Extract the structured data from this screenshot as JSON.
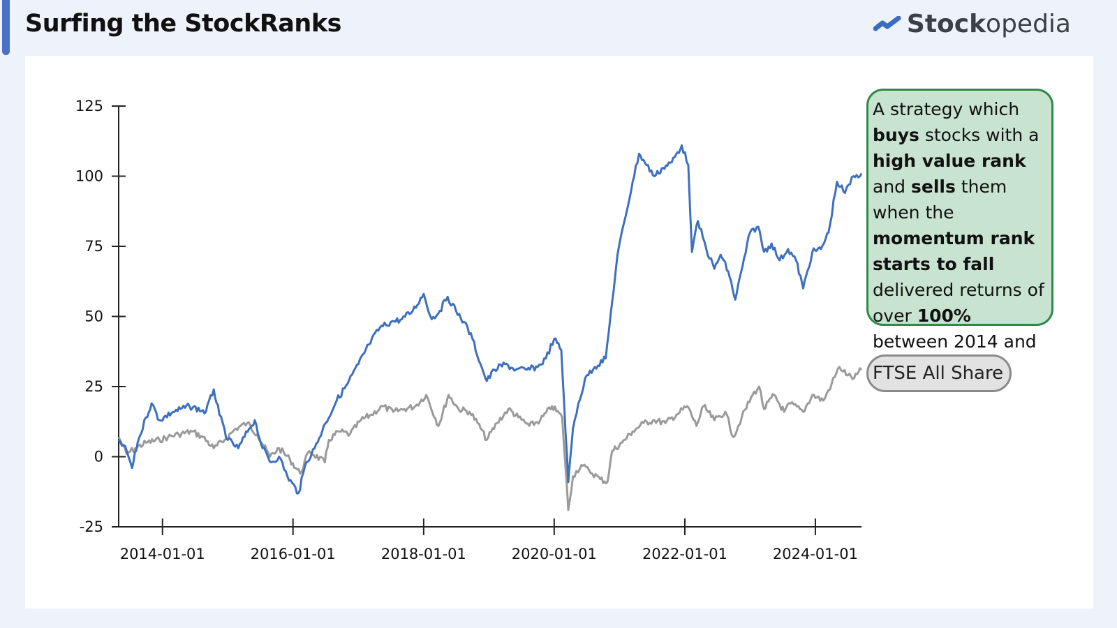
{
  "header": {
    "title": "Surfing the StockRanks",
    "brand_bold": "Stock",
    "brand_light": "opedia"
  },
  "annotation": {
    "segments": [
      {
        "text": "A strategy which ",
        "bold": false
      },
      {
        "text": "buys",
        "bold": true
      },
      {
        "text": " stocks with a ",
        "bold": false
      },
      {
        "text": "high value rank",
        "bold": true
      },
      {
        "text": " and ",
        "bold": false
      },
      {
        "text": "sells",
        "bold": true
      },
      {
        "text": " them when the ",
        "bold": false
      },
      {
        "text": "momentum rank starts to fall",
        "bold": true
      },
      {
        "text": " delivered returns of over ",
        "bold": false
      },
      {
        "text": "100%",
        "bold": true
      },
      {
        "text": " between 2014 and 2024",
        "bold": false
      }
    ]
  },
  "colors": {
    "strategy": "#3d6fbf",
    "benchmark": "#9a9a9a",
    "accent": "#4a72c4",
    "annotation_bg": "#c8e3d0",
    "annotation_border": "#2f8a4a"
  },
  "chart_data": {
    "type": "line",
    "title": "",
    "xlabel": "",
    "ylabel": "",
    "ylim": [
      -25,
      125
    ],
    "xlim": [
      "2013-05-01",
      "2024-09-15"
    ],
    "y_ticks": [
      "-25",
      "0",
      "25",
      "50",
      "75",
      "100",
      "125"
    ],
    "x_ticks": [
      "2014-01-01",
      "2016-01-01",
      "2018-01-01",
      "2020-01-01",
      "2022-01-01",
      "2024-01-01"
    ],
    "grid": false,
    "series": [
      {
        "name": "",
        "color": "#3d6fbf",
        "points": [
          [
            "2013-05-01",
            6
          ],
          [
            "2013-06-15",
            2
          ],
          [
            "2013-07-15",
            -4
          ],
          [
            "2013-08-15",
            5
          ],
          [
            "2013-10-01",
            14
          ],
          [
            "2013-11-01",
            19
          ],
          [
            "2013-12-15",
            13
          ],
          [
            "2014-03-01",
            16
          ],
          [
            "2014-06-01",
            18
          ],
          [
            "2014-09-01",
            16
          ],
          [
            "2014-10-15",
            24
          ],
          [
            "2014-11-15",
            15
          ],
          [
            "2015-01-01",
            6
          ],
          [
            "2015-03-01",
            3
          ],
          [
            "2015-05-01",
            10
          ],
          [
            "2015-06-01",
            13
          ],
          [
            "2015-07-15",
            3
          ],
          [
            "2015-09-01",
            -2
          ],
          [
            "2015-10-15",
            0
          ],
          [
            "2015-12-01",
            -7
          ],
          [
            "2016-02-01",
            -13
          ],
          [
            "2016-03-15",
            -2
          ],
          [
            "2016-05-01",
            3
          ],
          [
            "2016-07-01",
            12
          ],
          [
            "2016-09-01",
            20
          ],
          [
            "2016-11-01",
            26
          ],
          [
            "2017-01-01",
            33
          ],
          [
            "2017-03-01",
            40
          ],
          [
            "2017-05-01",
            46
          ],
          [
            "2017-07-01",
            48
          ],
          [
            "2017-09-01",
            49
          ],
          [
            "2017-11-01",
            52
          ],
          [
            "2018-01-01",
            58
          ],
          [
            "2018-02-15",
            49
          ],
          [
            "2018-04-01",
            52
          ],
          [
            "2018-05-15",
            57
          ],
          [
            "2018-07-01",
            52
          ],
          [
            "2018-08-15",
            48
          ],
          [
            "2018-10-01",
            42
          ],
          [
            "2018-11-15",
            33
          ],
          [
            "2018-12-20",
            27
          ],
          [
            "2019-02-01",
            31
          ],
          [
            "2019-04-01",
            33
          ],
          [
            "2019-06-01",
            31
          ],
          [
            "2019-08-01",
            31
          ],
          [
            "2019-10-01",
            32
          ],
          [
            "2019-11-15",
            35
          ],
          [
            "2020-01-01",
            42
          ],
          [
            "2020-02-10",
            38
          ],
          [
            "2020-03-20",
            -9
          ],
          [
            "2020-04-15",
            10
          ],
          [
            "2020-05-15",
            19
          ],
          [
            "2020-07-01",
            29
          ],
          [
            "2020-08-15",
            32
          ],
          [
            "2020-10-15",
            35
          ],
          [
            "2020-11-20",
            55
          ],
          [
            "2020-12-20",
            72
          ],
          [
            "2021-02-01",
            85
          ],
          [
            "2021-03-15",
            98
          ],
          [
            "2021-04-20",
            108
          ],
          [
            "2021-06-01",
            104
          ],
          [
            "2021-07-15",
            100
          ],
          [
            "2021-09-01",
            103
          ],
          [
            "2021-10-20",
            105
          ],
          [
            "2021-12-15",
            111
          ],
          [
            "2022-01-20",
            104
          ],
          [
            "2022-02-10",
            73
          ],
          [
            "2022-03-15",
            84
          ],
          [
            "2022-05-01",
            74
          ],
          [
            "2022-06-15",
            67
          ],
          [
            "2022-07-20",
            72
          ],
          [
            "2022-09-01",
            66
          ],
          [
            "2022-10-10",
            56
          ],
          [
            "2022-11-20",
            68
          ],
          [
            "2023-01-01",
            80
          ],
          [
            "2023-02-15",
            82
          ],
          [
            "2023-03-20",
            73
          ],
          [
            "2023-05-01",
            76
          ],
          [
            "2023-06-15",
            70
          ],
          [
            "2023-08-01",
            74
          ],
          [
            "2023-09-15",
            70
          ],
          [
            "2023-10-25",
            60
          ],
          [
            "2023-12-15",
            73
          ],
          [
            "2024-02-01",
            74
          ],
          [
            "2024-03-15",
            80
          ],
          [
            "2024-05-01",
            98
          ],
          [
            "2024-06-15",
            94
          ],
          [
            "2024-08-01",
            100
          ],
          [
            "2024-09-15",
            101
          ]
        ]
      },
      {
        "name": "FTSE All Share",
        "color": "#9a9a9a",
        "points": [
          [
            "2013-05-01",
            7
          ],
          [
            "2013-06-15",
            1
          ],
          [
            "2013-08-01",
            3
          ],
          [
            "2013-10-01",
            5
          ],
          [
            "2013-12-15",
            6
          ],
          [
            "2014-02-01",
            7
          ],
          [
            "2014-04-01",
            8
          ],
          [
            "2014-06-15",
            9
          ],
          [
            "2014-08-15",
            7
          ],
          [
            "2014-10-15",
            3
          ],
          [
            "2014-12-15",
            6
          ],
          [
            "2015-02-15",
            10
          ],
          [
            "2015-04-20",
            12
          ],
          [
            "2015-06-15",
            8
          ],
          [
            "2015-08-25",
            0
          ],
          [
            "2015-10-15",
            3
          ],
          [
            "2015-12-15",
            -1
          ],
          [
            "2016-02-10",
            -6
          ],
          [
            "2016-04-01",
            2
          ],
          [
            "2016-06-27",
            -2
          ],
          [
            "2016-07-20",
            6
          ],
          [
            "2016-09-15",
            9
          ],
          [
            "2016-11-15",
            8
          ],
          [
            "2017-01-15",
            13
          ],
          [
            "2017-03-15",
            15
          ],
          [
            "2017-05-15",
            18
          ],
          [
            "2017-07-15",
            16
          ],
          [
            "2017-09-15",
            17
          ],
          [
            "2017-11-15",
            18
          ],
          [
            "2018-01-15",
            22
          ],
          [
            "2018-03-25",
            11
          ],
          [
            "2018-05-20",
            22
          ],
          [
            "2018-07-15",
            17
          ],
          [
            "2018-09-15",
            16
          ],
          [
            "2018-10-30",
            12
          ],
          [
            "2018-12-20",
            6
          ],
          [
            "2019-02-15",
            12
          ],
          [
            "2019-04-20",
            17
          ],
          [
            "2019-06-15",
            14
          ],
          [
            "2019-08-15",
            11
          ],
          [
            "2019-10-15",
            13
          ],
          [
            "2019-12-20",
            18
          ],
          [
            "2020-02-15",
            14
          ],
          [
            "2020-03-20",
            -19
          ],
          [
            "2020-04-15",
            -7
          ],
          [
            "2020-06-01",
            -3
          ],
          [
            "2020-07-15",
            -5
          ],
          [
            "2020-09-15",
            -8
          ],
          [
            "2020-10-25",
            -9
          ],
          [
            "2020-11-20",
            2
          ],
          [
            "2021-01-15",
            5
          ],
          [
            "2021-03-15",
            9
          ],
          [
            "2021-05-15",
            12
          ],
          [
            "2021-07-15",
            13
          ],
          [
            "2021-09-15",
            12
          ],
          [
            "2021-11-15",
            15
          ],
          [
            "2022-01-15",
            18
          ],
          [
            "2022-03-07",
            11
          ],
          [
            "2022-04-15",
            18
          ],
          [
            "2022-06-15",
            13
          ],
          [
            "2022-08-15",
            16
          ],
          [
            "2022-09-30",
            7
          ],
          [
            "2022-11-15",
            14
          ],
          [
            "2023-01-15",
            22
          ],
          [
            "2023-02-20",
            25
          ],
          [
            "2023-03-20",
            17
          ],
          [
            "2023-05-15",
            22
          ],
          [
            "2023-07-10",
            16
          ],
          [
            "2023-08-15",
            19
          ],
          [
            "2023-10-25",
            16
          ],
          [
            "2023-12-15",
            22
          ],
          [
            "2024-02-15",
            20
          ],
          [
            "2024-04-01",
            26
          ],
          [
            "2024-05-15",
            32
          ],
          [
            "2024-07-01",
            29
          ],
          [
            "2024-08-05",
            28
          ],
          [
            "2024-09-15",
            31
          ]
        ]
      }
    ]
  }
}
